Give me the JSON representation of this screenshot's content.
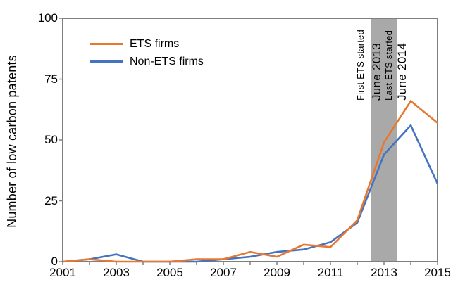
{
  "chart_data": {
    "type": "line",
    "title": "",
    "xlabel": "",
    "ylabel": "Number of low carbon patents",
    "x": [
      2001,
      2002,
      2003,
      2004,
      2005,
      2006,
      2007,
      2008,
      2009,
      2010,
      2011,
      2012,
      2013,
      2014,
      2015
    ],
    "series": [
      {
        "name": "ETS firms",
        "color": "#E8782F",
        "values": [
          0,
          1,
          0,
          0,
          0,
          1,
          1,
          4,
          2,
          7,
          6,
          17,
          49,
          66,
          57
        ]
      },
      {
        "name": "Non-ETS firms",
        "color": "#4473C0",
        "values": [
          0,
          1,
          3,
          0,
          0,
          0,
          1,
          2,
          4,
          5,
          8,
          16,
          44,
          56,
          32
        ]
      }
    ],
    "xlim": [
      2001,
      2015
    ],
    "ylim": [
      0,
      100
    ],
    "yticks": [
      0,
      25,
      50,
      75,
      100
    ],
    "xtick_labels": [
      2001,
      2003,
      2005,
      2007,
      2009,
      2011,
      2013,
      2015
    ],
    "xticks_minor_every_year": true,
    "grid": false,
    "legend_position": "top-left",
    "frame_color": "#7F7F7F",
    "shaded_band": {
      "x_from": 2012.5,
      "x_to": 2013.5,
      "color": "#A9A9A9"
    },
    "annotations": [
      {
        "text": "First ETS started",
        "x_year": 2012.13,
        "style": "plain"
      },
      {
        "text": "June 2013",
        "x_year": 2012.72,
        "style": "year"
      },
      {
        "text": "Last ETS started",
        "x_year": 2013.18,
        "style": "plain"
      },
      {
        "text": "June 2014",
        "x_year": 2013.66,
        "style": "year"
      }
    ]
  }
}
